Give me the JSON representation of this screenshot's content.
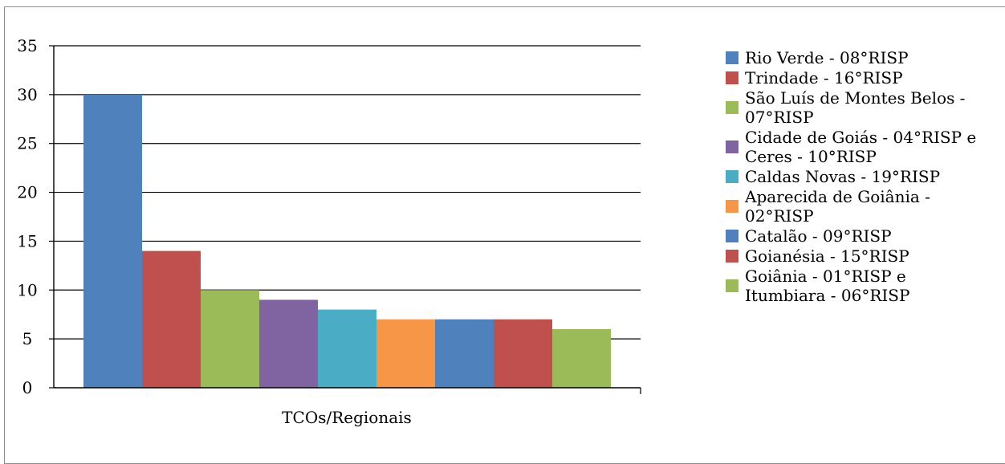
{
  "chart_data": {
    "type": "bar",
    "categories": [
      "TCOs/Regionais"
    ],
    "xlabel": "TCOs/Regionais",
    "ylabel": "",
    "title": "",
    "ylim": [
      0,
      35
    ],
    "yticks": [
      0,
      5,
      10,
      15,
      20,
      25,
      30,
      35
    ],
    "grid": true,
    "legend_position": "right",
    "series": [
      {
        "name": "Rio Verde - 08°RISP",
        "values": [
          30
        ],
        "color": "#4f81bd"
      },
      {
        "name": "Trindade - 16°RISP",
        "values": [
          14
        ],
        "color": "#c0504d"
      },
      {
        "name": "São Luís de Montes Belos - 07°RISP",
        "values": [
          10
        ],
        "color": "#9bbb59"
      },
      {
        "name": "Cidade de Goiás - 04°RISP e Ceres - 10°RISP",
        "values": [
          9
        ],
        "color": "#8064a2"
      },
      {
        "name": "Caldas Novas - 19°RISP",
        "values": [
          8
        ],
        "color": "#4bacc6"
      },
      {
        "name": "Aparecida de Goiânia - 02°RISP",
        "values": [
          7
        ],
        "color": "#f79646"
      },
      {
        "name": "Catalão - 09°RISP",
        "values": [
          7
        ],
        "color": "#4f81bd"
      },
      {
        "name": "Goianésia - 15°RISP",
        "values": [
          7
        ],
        "color": "#c0504d"
      },
      {
        "name": "Goiânia - 01°RISP e Itumbiara - 06°RISP",
        "values": [
          6
        ],
        "color": "#9bbb59"
      }
    ],
    "legend_lines": [
      [
        "Rio Verde - 08°RISP"
      ],
      [
        "Trindade - 16°RISP"
      ],
      [
        "São Luís de Montes Belos -",
        "07°RISP"
      ],
      [
        "Cidade de Goiás - 04°RISP e",
        "Ceres - 10°RISP"
      ],
      [
        "Caldas Novas - 19°RISP"
      ],
      [
        "Aparecida de Goiânia -",
        "02°RISP"
      ],
      [
        "Catalão - 09°RISP"
      ],
      [
        "Goianésia - 15°RISP"
      ],
      [
        "Goiânia - 01°RISP e",
        "Itumbiara - 06°RISP"
      ]
    ]
  }
}
